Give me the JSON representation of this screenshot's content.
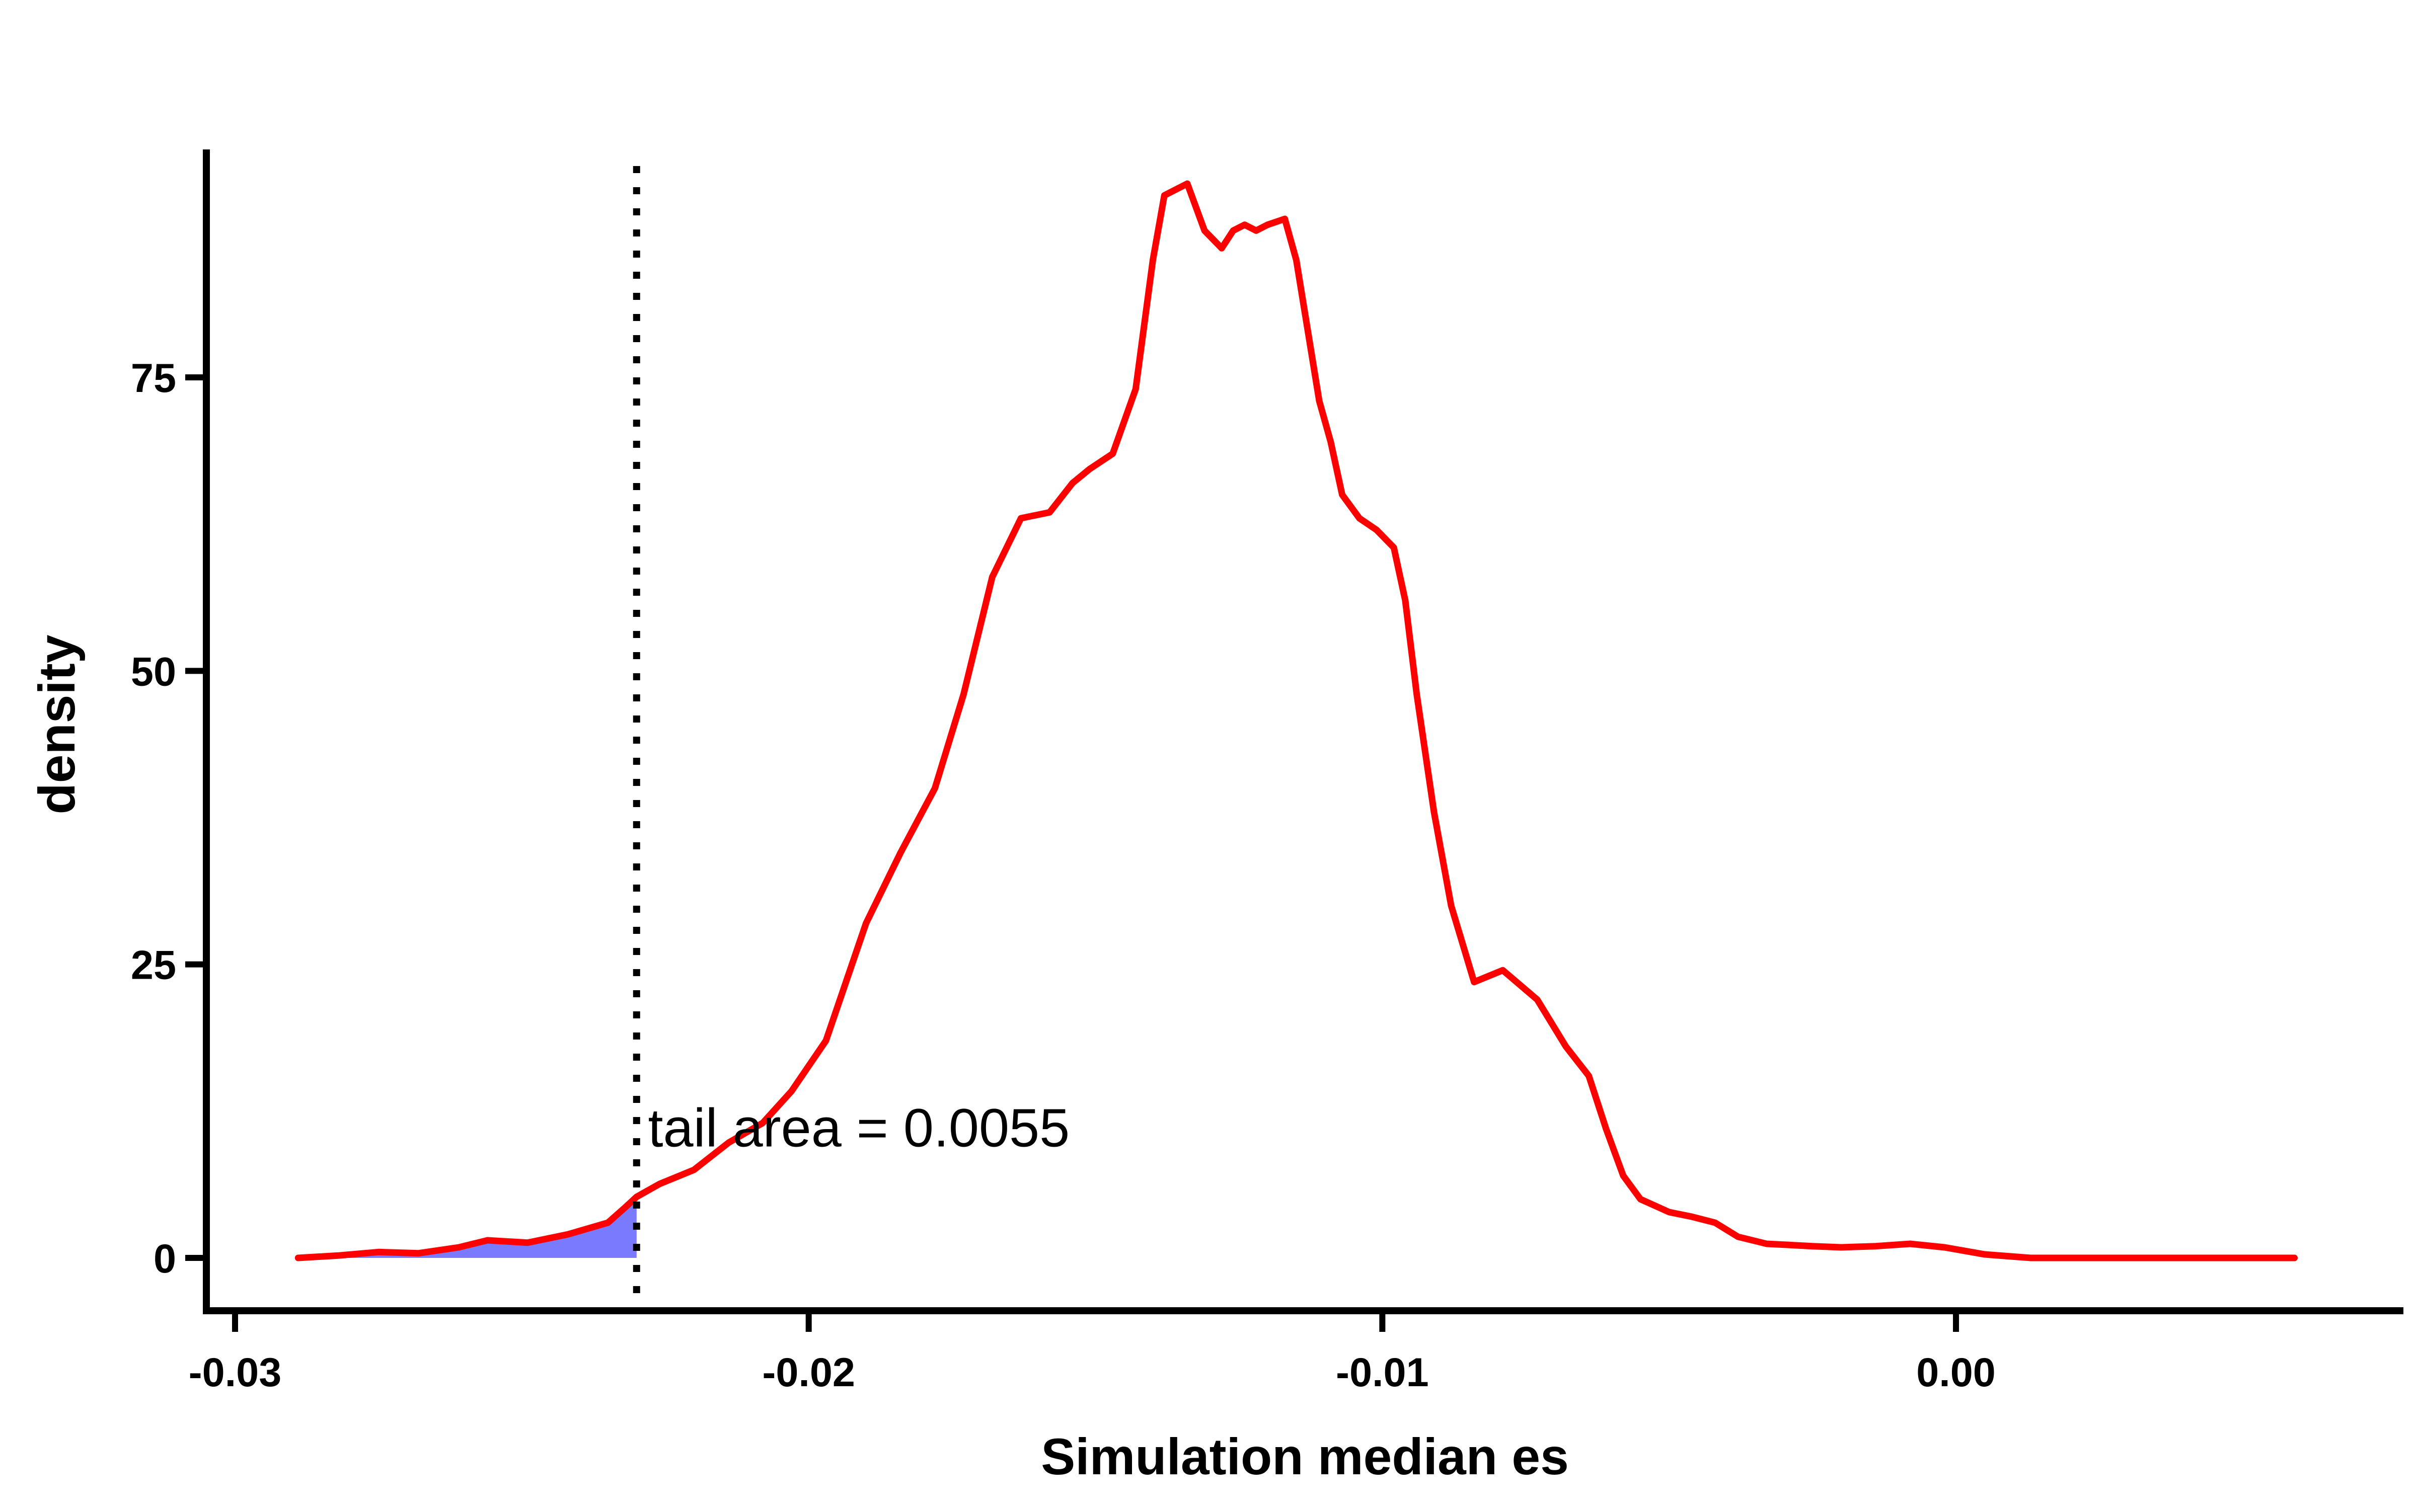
{
  "chart_data": {
    "type": "area",
    "title": "",
    "xlabel": "Simulation median es",
    "ylabel": "density",
    "xlim": [
      -0.0305,
      0.0078
    ],
    "ylim": [
      -4.5,
      96
    ],
    "x_ticks": [
      {
        "value": -0.03,
        "label": "-0.03"
      },
      {
        "value": -0.02,
        "label": "-0.02"
      },
      {
        "value": -0.01,
        "label": "-0.01"
      },
      {
        "value": 0.0,
        "label": "0.00"
      }
    ],
    "y_ticks": [
      {
        "value": 0,
        "label": "0"
      },
      {
        "value": 25,
        "label": "25"
      },
      {
        "value": 50,
        "label": "50"
      },
      {
        "value": 75,
        "label": "75"
      }
    ],
    "grid": false,
    "series": [
      {
        "color": "#ff0000",
        "x": [
          -0.0289,
          -0.0282,
          -0.0275,
          -0.0268,
          -0.0261,
          -0.0256,
          -0.0249,
          -0.0242,
          -0.0235,
          -0.0232,
          -0.023,
          -0.0226,
          -0.022,
          -0.0214,
          -0.0208,
          -0.0203,
          -0.0197,
          -0.019,
          -0.0184,
          -0.0178,
          -0.0173,
          -0.0168,
          -0.0163,
          -0.0158,
          -0.0154,
          -0.0151,
          -0.0147,
          -0.0143,
          -0.014,
          -0.0138,
          -0.0134,
          -0.0131,
          -0.0128,
          -0.0126,
          -0.0124,
          -0.0122,
          -0.012,
          -0.0117,
          -0.0115,
          -0.0113,
          -0.0111,
          -0.0109,
          -0.0107,
          -0.0104,
          -0.0101,
          -0.0098,
          -0.0096,
          -0.0094,
          -0.0091,
          -0.0088,
          -0.0084,
          -0.0079,
          -0.0073,
          -0.0068,
          -0.0064,
          -0.0061,
          -0.0058,
          -0.0055,
          -0.005,
          -0.0046,
          -0.0042,
          -0.0038,
          -0.0033,
          -0.0029,
          -0.0025,
          -0.002,
          -0.0014,
          -0.0008,
          -0.0002,
          0.0005,
          0.0013,
          0.0021,
          0.0029,
          0.0037,
          0.0045,
          0.0052,
          0.0059
        ],
        "values": [
          0.0,
          0.2,
          0.5,
          0.4,
          0.9,
          1.5,
          1.3,
          2.0,
          3.0,
          4.3,
          5.2,
          6.3,
          7.5,
          9.8,
          11.5,
          14.2,
          18.5,
          28.5,
          34.5,
          40.0,
          48.0,
          58.0,
          63.0,
          63.5,
          66.0,
          67.2,
          68.5,
          74.0,
          85.0,
          90.5,
          91.5,
          87.5,
          86.0,
          87.5,
          88.0,
          87.5,
          88.0,
          88.5,
          85.0,
          79.0,
          73.0,
          69.5,
          65.0,
          63.0,
          62.0,
          60.5,
          56.0,
          48.0,
          38.0,
          30.0,
          23.5,
          24.5,
          22.0,
          18.0,
          15.5,
          11.0,
          7.0,
          5.0,
          3.9,
          3.5,
          3.0,
          1.8,
          1.2,
          1.1,
          1.0,
          0.9,
          1.0,
          1.2,
          0.9,
          0.3,
          0.0,
          0.0,
          0.0,
          0.0,
          0.0,
          0.0,
          0.0
        ]
      }
    ],
    "shaded_region": {
      "x_max": -0.023,
      "color": "#7a7aff"
    },
    "vline": {
      "x": -0.023,
      "style": "dotted",
      "color": "#000000"
    },
    "annotation": {
      "text": "tail area =  0.0055",
      "x": -0.0228,
      "y": 9.5
    }
  }
}
